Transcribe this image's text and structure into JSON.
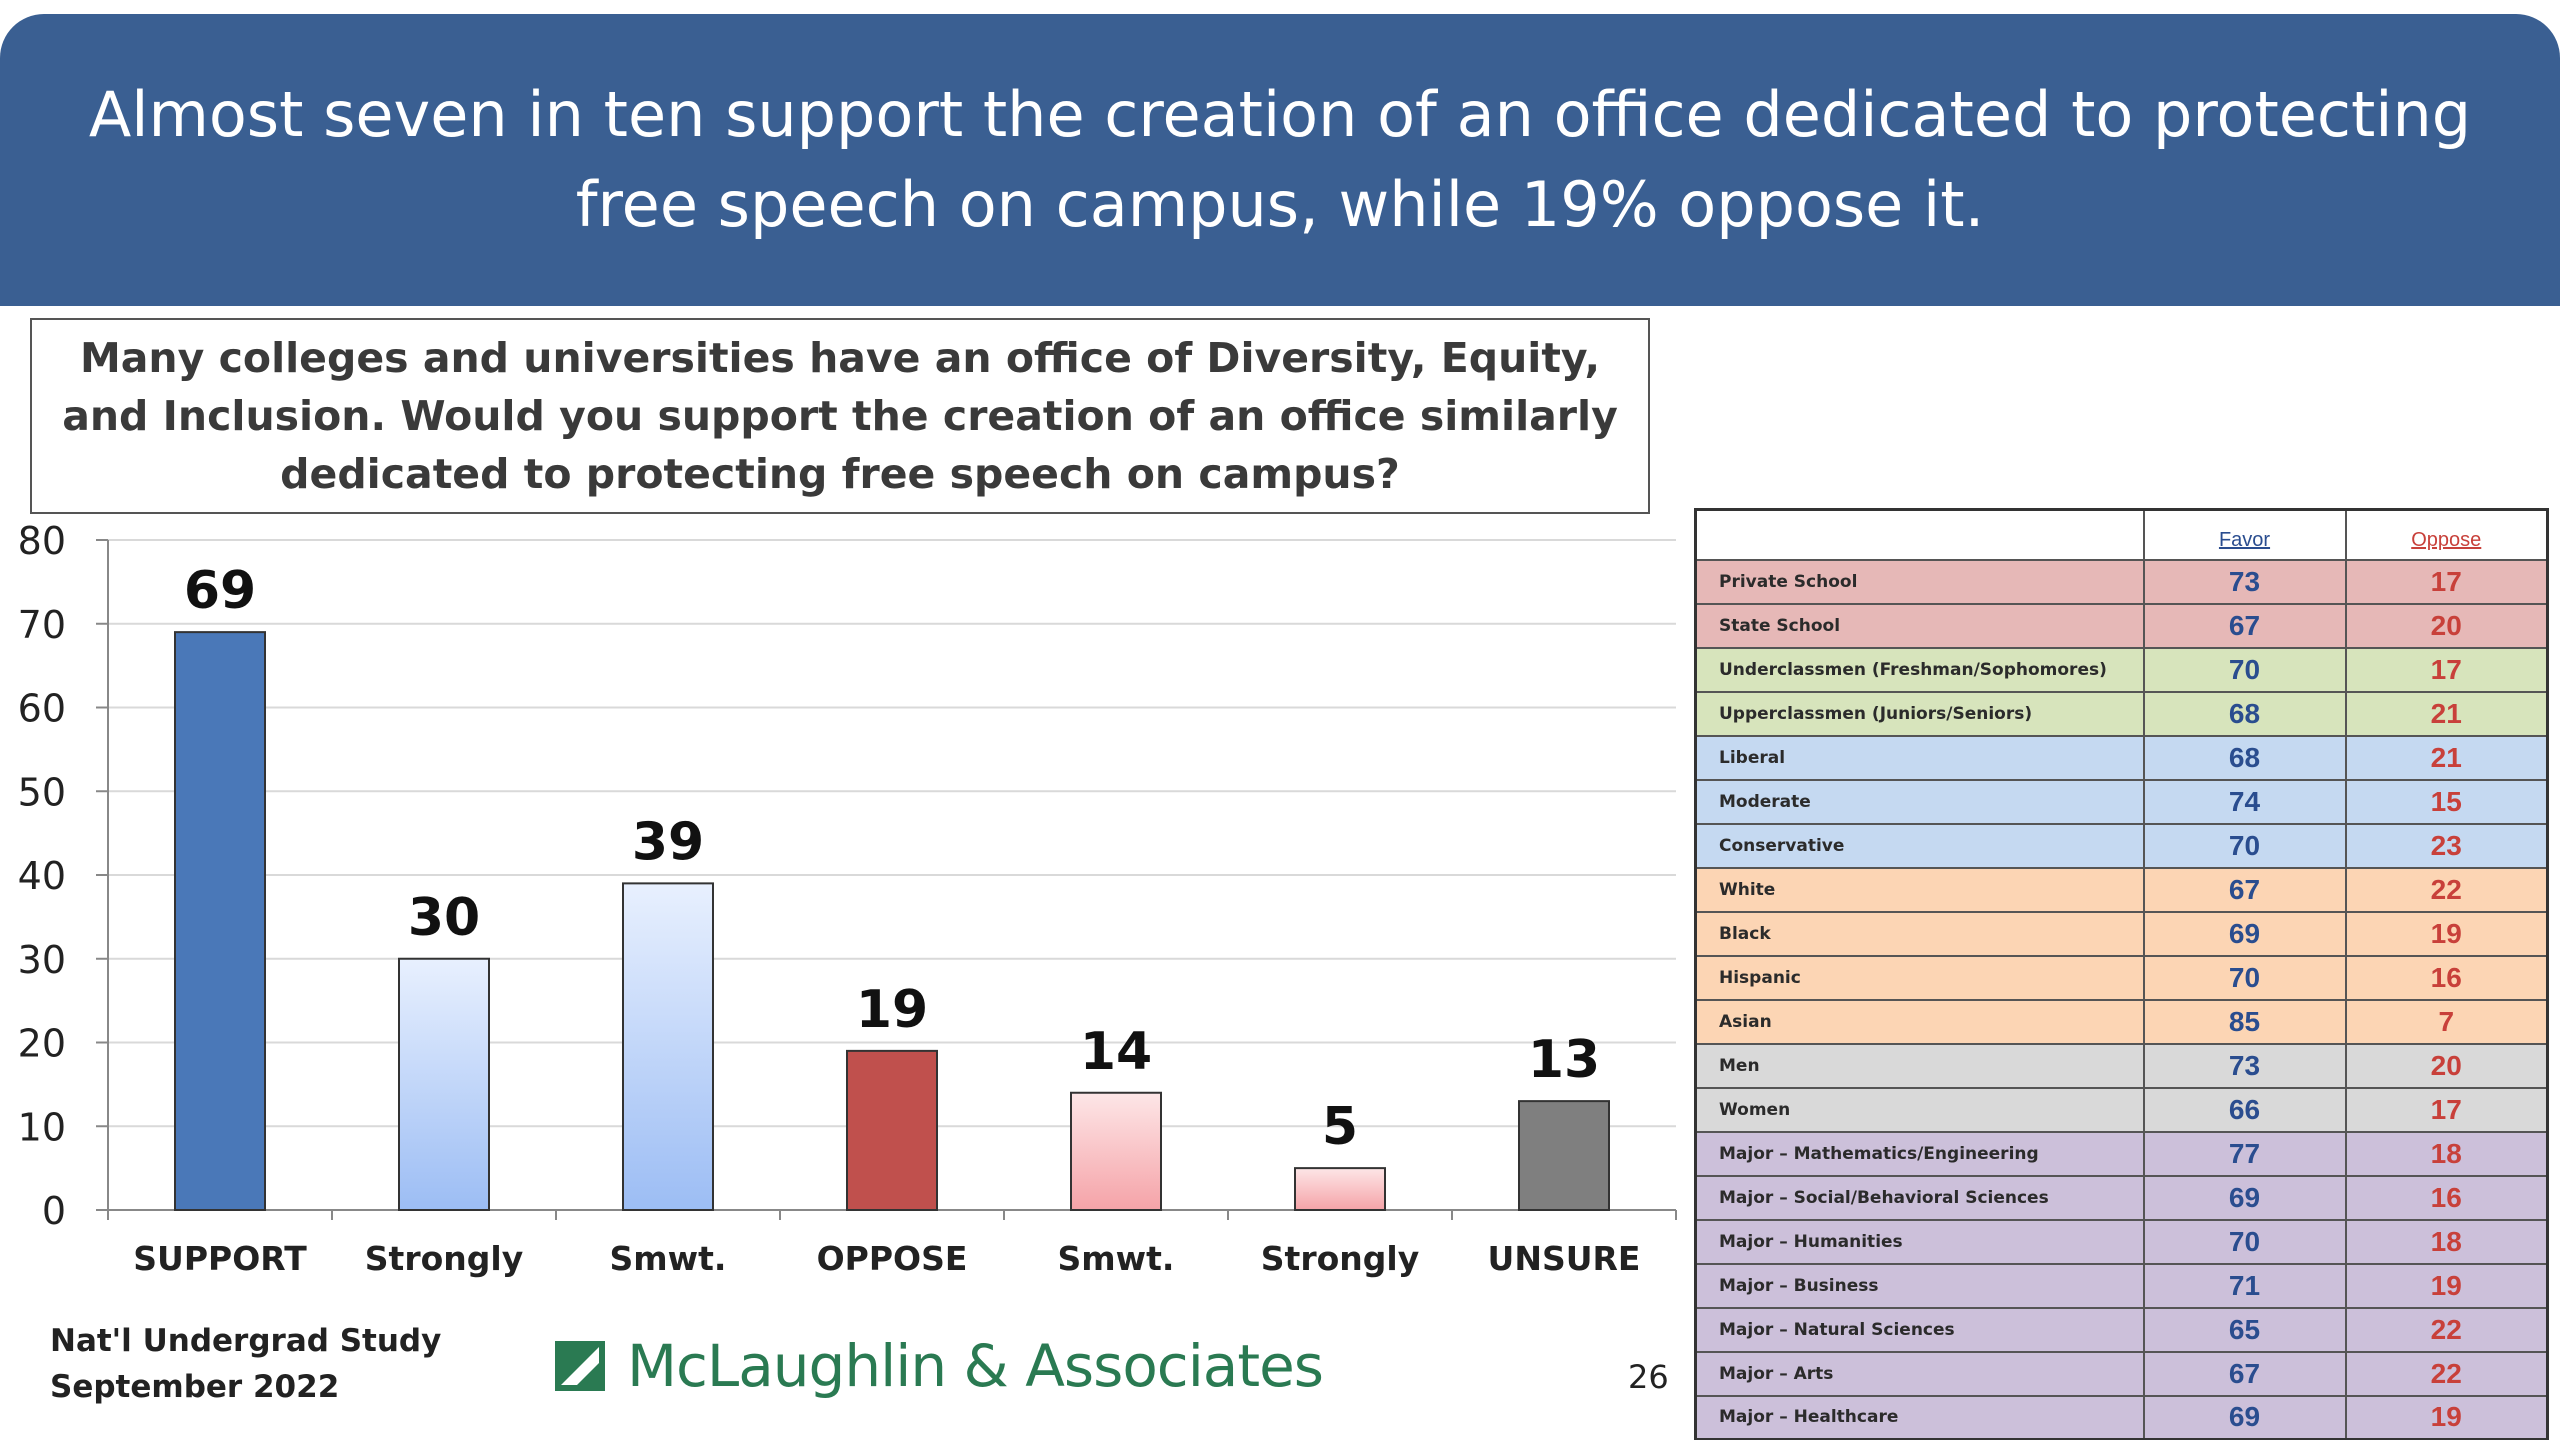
{
  "banner": {
    "title": "Almost seven in ten support the creation of an office dedicated to protecting free speech on campus, while 19% oppose it."
  },
  "question": {
    "text": "Many colleges and universities have an office of Diversity, Equity, and Inclusion. Would you support the creation of an office similarly dedicated to protecting free speech on campus?"
  },
  "chart_data": {
    "type": "bar",
    "categories": [
      "SUPPORT",
      "Strongly",
      "Smwt.",
      "OPPOSE",
      "Smwt.",
      "Strongly",
      "UNSURE"
    ],
    "values": [
      69,
      30,
      39,
      19,
      14,
      5,
      13
    ],
    "ylim": [
      0,
      80
    ],
    "yticks": [
      0,
      10,
      20,
      30,
      40,
      50,
      60,
      70,
      80
    ],
    "grid": true,
    "bar_colors": [
      "#4a78b8",
      "#aac6f6",
      "#aac6f6",
      "#c0504d",
      "#f9b7ba",
      "#f9b7ba",
      "#7f7f7f"
    ],
    "title": "",
    "xlabel": "",
    "ylabel": ""
  },
  "crosstab": {
    "headers": {
      "group": "",
      "favor": "Favor",
      "oppose": "Oppose"
    },
    "rows": [
      {
        "group": "Private School",
        "favor": "73",
        "oppose": "17",
        "color": "#e6b8b7"
      },
      {
        "group": "State School",
        "favor": "67",
        "oppose": "20",
        "color": "#e6b8b7"
      },
      {
        "group": "Underclassmen (Freshman/Sophomores)",
        "favor": "70",
        "oppose": "17",
        "color": "#d7e4bc"
      },
      {
        "group": "Upperclassmen (Juniors/Seniors)",
        "favor": "68",
        "oppose": "21",
        "color": "#d7e4bc"
      },
      {
        "group": "Liberal",
        "favor": "68",
        "oppose": "21",
        "color": "#c5d9f1"
      },
      {
        "group": "Moderate",
        "favor": "74",
        "oppose": "15",
        "color": "#c5d9f1"
      },
      {
        "group": "Conservative",
        "favor": "70",
        "oppose": "23",
        "color": "#c5d9f1"
      },
      {
        "group": "White",
        "favor": "67",
        "oppose": "22",
        "color": "#fcd5b4"
      },
      {
        "group": "Black",
        "favor": "69",
        "oppose": "19",
        "color": "#fcd5b4"
      },
      {
        "group": "Hispanic",
        "favor": "70",
        "oppose": "16",
        "color": "#fcd5b4"
      },
      {
        "group": "Asian",
        "favor": "85",
        "oppose": "7",
        "color": "#fcd5b4"
      },
      {
        "group": "Men",
        "favor": "73",
        "oppose": "20",
        "color": "#d9d9d9"
      },
      {
        "group": "Women",
        "favor": "66",
        "oppose": "17",
        "color": "#d9d9d9"
      },
      {
        "group": "Major – Mathematics/Engineering",
        "favor": "77",
        "oppose": "18",
        "color": "#ccc0da"
      },
      {
        "group": "Major – Social/Behavioral Sciences",
        "favor": "69",
        "oppose": "16",
        "color": "#ccc0da"
      },
      {
        "group": "Major – Humanities",
        "favor": "70",
        "oppose": "18",
        "color": "#ccc0da"
      },
      {
        "group": "Major – Business",
        "favor": "71",
        "oppose": "19",
        "color": "#ccc0da"
      },
      {
        "group": "Major – Natural Sciences",
        "favor": "65",
        "oppose": "22",
        "color": "#ccc0da"
      },
      {
        "group": "Major – Arts",
        "favor": "67",
        "oppose": "22",
        "color": "#ccc0da"
      },
      {
        "group": "Major – Healthcare",
        "favor": "69",
        "oppose": "19",
        "color": "#ccc0da"
      }
    ]
  },
  "footer": {
    "study_line1": "Nat'l Undergrad Study",
    "study_line2": "September 2022",
    "logo_text": "McLaughlin & Associates",
    "logo_color": "#2a7a52",
    "page_number": "26"
  }
}
